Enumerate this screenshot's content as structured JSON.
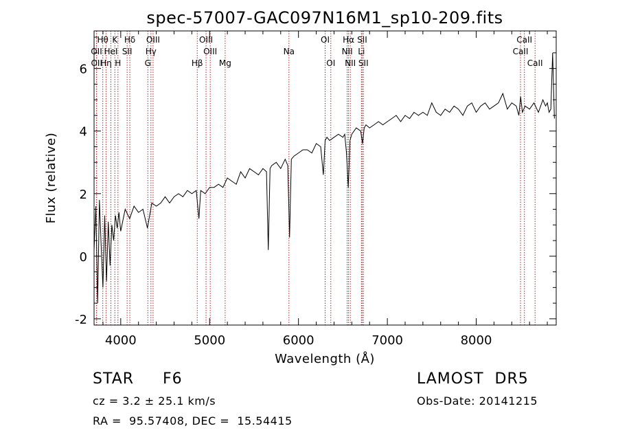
{
  "chart_data": {
    "type": "line",
    "title": "spec-57007-GAC097N16M1_sp10-209.fits",
    "xlabel": "Wavelength (Å)",
    "ylabel": "Flux (relative)",
    "xlim": [
      3700,
      8900
    ],
    "ylim": [
      -2.2,
      7.2
    ],
    "xticks": [
      4000,
      5000,
      6000,
      7000,
      8000
    ],
    "yticks": [
      -2,
      0,
      2,
      4,
      6
    ],
    "grid": false,
    "series": [
      {
        "x": [
          3700,
          3720,
          3740,
          3760,
          3780,
          3800,
          3820,
          3840,
          3860,
          3880,
          3900,
          3920,
          3940,
          3960,
          3980,
          4000,
          4050,
          4100,
          4150,
          4200,
          4250,
          4300,
          4350,
          4400,
          4450,
          4500,
          4550,
          4600,
          4650,
          4700,
          4750,
          4800,
          4850,
          4880,
          4900,
          4950,
          5000,
          5050,
          5100,
          5150,
          5200,
          5250,
          5300,
          5350,
          5400,
          5450,
          5500,
          5550,
          5600,
          5640,
          5660,
          5680,
          5700,
          5750,
          5800,
          5850,
          5880,
          5900,
          5920,
          5950,
          6000,
          6050,
          6100,
          6150,
          6200,
          6250,
          6280,
          6300,
          6320,
          6350,
          6400,
          6450,
          6500,
          6520,
          6540,
          6560,
          6580,
          6600,
          6650,
          6700,
          6720,
          6740,
          6760,
          6800,
          6850,
          6900,
          6950,
          7000,
          7050,
          7100,
          7150,
          7200,
          7250,
          7300,
          7350,
          7400,
          7450,
          7500,
          7550,
          7600,
          7650,
          7700,
          7750,
          7800,
          7850,
          7900,
          7950,
          8000,
          8050,
          8100,
          8150,
          8200,
          8250,
          8300,
          8350,
          8400,
          8450,
          8480,
          8500,
          8520,
          8550,
          8600,
          8650,
          8700,
          8750,
          8780,
          8800,
          8820,
          8840,
          8860,
          8880
        ],
        "y": [
          0.2,
          1.6,
          -1.5,
          1.8,
          0.3,
          -1.0,
          1.3,
          -0.8,
          1.1,
          -0.3,
          1.0,
          0.5,
          1.3,
          0.9,
          1.4,
          0.8,
          1.5,
          1.2,
          1.6,
          1.4,
          1.5,
          0.9,
          1.7,
          1.6,
          1.7,
          1.9,
          1.7,
          1.9,
          2.0,
          1.9,
          2.1,
          2.0,
          2.1,
          1.2,
          2.1,
          2.0,
          2.2,
          2.2,
          2.3,
          2.2,
          2.5,
          2.4,
          2.3,
          2.7,
          2.5,
          2.8,
          2.7,
          2.6,
          2.8,
          2.7,
          0.2,
          2.8,
          2.9,
          3.0,
          2.8,
          3.1,
          2.9,
          0.6,
          3.1,
          3.2,
          3.3,
          3.4,
          3.4,
          3.3,
          3.6,
          3.5,
          2.6,
          3.7,
          3.8,
          3.7,
          3.8,
          3.9,
          3.8,
          3.9,
          3.3,
          2.2,
          3.7,
          3.9,
          4.1,
          4.0,
          3.6,
          4.1,
          4.2,
          4.1,
          4.2,
          4.3,
          4.2,
          4.3,
          4.4,
          4.5,
          4.3,
          4.5,
          4.4,
          4.6,
          4.5,
          4.6,
          4.5,
          4.9,
          4.6,
          4.5,
          4.7,
          4.6,
          4.8,
          4.7,
          4.5,
          4.8,
          4.9,
          4.6,
          4.8,
          4.9,
          4.7,
          4.8,
          4.9,
          5.2,
          4.7,
          4.9,
          4.8,
          4.5,
          5.1,
          4.6,
          4.8,
          4.7,
          4.9,
          4.6,
          5.0,
          4.8,
          4.9,
          4.6,
          4.7,
          6.5,
          4.4
        ]
      }
    ],
    "line_markers": [
      {
        "label": "Hθ",
        "x": 3798,
        "row": 1
      },
      {
        "label": "K",
        "x": 3934,
        "row": 1
      },
      {
        "label": "Hδ",
        "x": 4102,
        "row": 1
      },
      {
        "label": "OIII",
        "x": 4364,
        "row": 1
      },
      {
        "label": "OIII",
        "x": 4960,
        "row": 1
      },
      {
        "label": "OI",
        "x": 6300,
        "row": 1
      },
      {
        "label": "Hα",
        "x": 6563,
        "row": 1
      },
      {
        "label": "SII",
        "x": 6717,
        "row": 1
      },
      {
        "label": "CaII",
        "x": 8542,
        "row": 1
      },
      {
        "label": "OII",
        "x": 3727,
        "row": 2
      },
      {
        "label": "HeI",
        "x": 3889,
        "row": 2
      },
      {
        "label": "SII",
        "x": 4072,
        "row": 2
      },
      {
        "label": "Hγ",
        "x": 4340,
        "row": 2
      },
      {
        "label": "OIII",
        "x": 5007,
        "row": 2
      },
      {
        "label": "Na",
        "x": 5893,
        "row": 2
      },
      {
        "label": "NII",
        "x": 6548,
        "row": 2
      },
      {
        "label": "Li",
        "x": 6708,
        "row": 2
      },
      {
        "label": "CaII",
        "x": 8498,
        "row": 2
      },
      {
        "label": "OII",
        "x": 3729,
        "row": 3
      },
      {
        "label": "Hη",
        "x": 3835,
        "row": 3
      },
      {
        "label": "H",
        "x": 3969,
        "row": 3
      },
      {
        "label": "G",
        "x": 4305,
        "row": 3
      },
      {
        "label": "Hβ",
        "x": 4861,
        "row": 3
      },
      {
        "label": "Mg",
        "x": 5175,
        "row": 3
      },
      {
        "label": "OI",
        "x": 6364,
        "row": 3
      },
      {
        "label": "NII",
        "x": 6583,
        "row": 3
      },
      {
        "label": "SII",
        "x": 6731,
        "row": 3
      },
      {
        "label": "CaII",
        "x": 8662,
        "row": 3
      }
    ]
  },
  "footer": {
    "object_class": "STAR",
    "subclass": "F6",
    "survey": "LAMOST  DR5",
    "redshift": "cz = 3.2 ± 25.1 km/s",
    "obs_date": "Obs-Date: 20141215",
    "coords": "RA =  95.57408, DEC =  15.54415"
  },
  "colors": {
    "marker_line": "#b22222",
    "spectrum": "#000000"
  }
}
